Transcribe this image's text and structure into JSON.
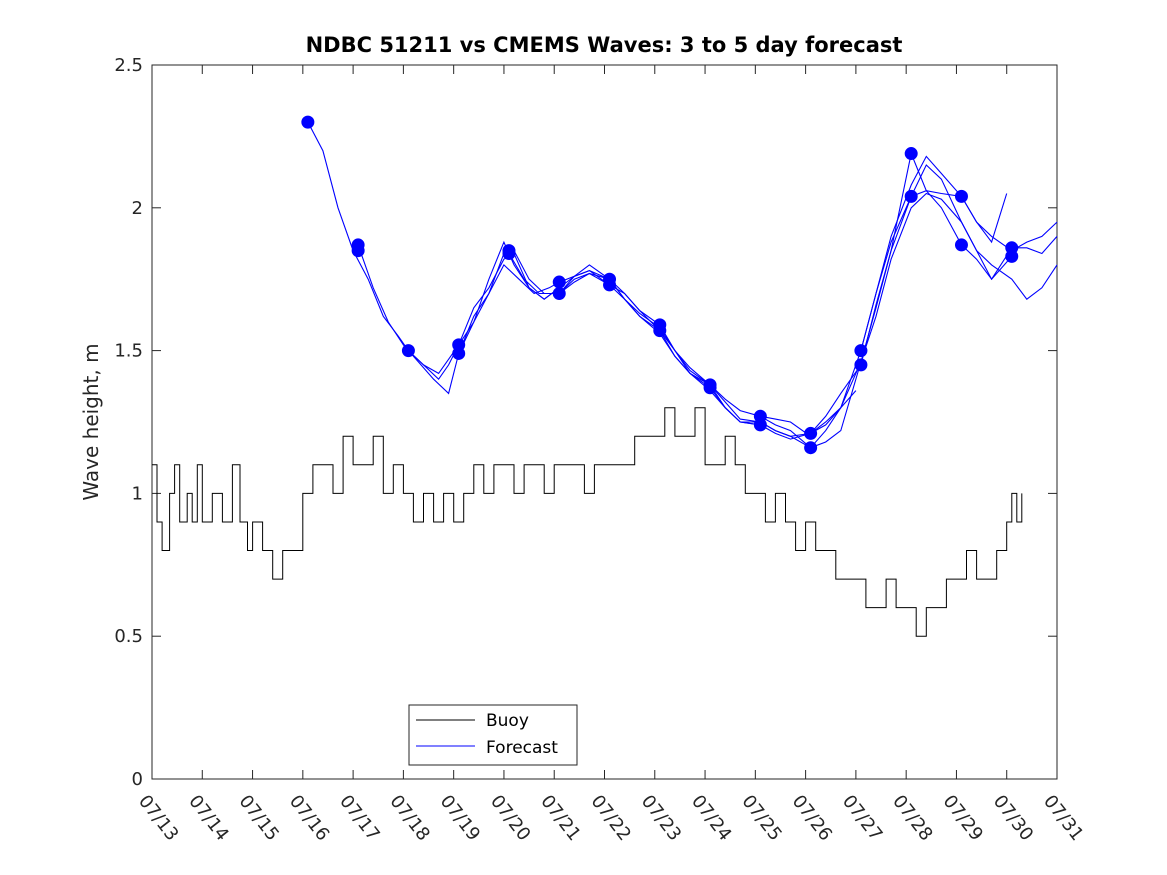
{
  "chart_data": {
    "type": "line",
    "title": "NDBC 51211 vs CMEMS Waves: 3 to 5 day forecast",
    "ylabel": "Wave height, m",
    "xlabel": "",
    "xlim": [
      13,
      31
    ],
    "ylim": [
      0,
      2.5
    ],
    "grid": false,
    "legend_placement": "bottom-left",
    "x_ticks": [
      "07/13",
      "07/14",
      "07/15",
      "07/16",
      "07/17",
      "07/18",
      "07/19",
      "07/20",
      "07/21",
      "07/22",
      "07/23",
      "07/24",
      "07/25",
      "07/26",
      "07/27",
      "07/28",
      "07/29",
      "07/30",
      "07/31"
    ],
    "y_ticks": [
      "0",
      "0.5",
      "1",
      "1.5",
      "2",
      "2.5"
    ],
    "y_tick_values": [
      0,
      0.5,
      1,
      1.5,
      2,
      2.5
    ],
    "colors": {
      "buoy": "#000000",
      "forecast": "#0000ff"
    },
    "series": [
      {
        "name": "Buoy",
        "style": "step",
        "x": [
          13.0,
          13.1,
          13.2,
          13.35,
          13.45,
          13.55,
          13.7,
          13.8,
          13.9,
          14.0,
          14.2,
          14.4,
          14.6,
          14.75,
          14.9,
          15.0,
          15.2,
          15.4,
          15.6,
          15.8,
          16.0,
          16.2,
          16.4,
          16.6,
          16.8,
          17.0,
          17.2,
          17.4,
          17.6,
          17.8,
          18.0,
          18.2,
          18.4,
          18.6,
          18.8,
          19.0,
          19.2,
          19.4,
          19.6,
          19.8,
          20.0,
          20.2,
          20.4,
          20.6,
          20.8,
          21.0,
          21.2,
          21.4,
          21.6,
          21.8,
          22.0,
          22.2,
          22.4,
          22.6,
          22.8,
          23.0,
          23.2,
          23.4,
          23.6,
          23.8,
          24.0,
          24.2,
          24.4,
          24.6,
          24.8,
          25.0,
          25.2,
          25.4,
          25.6,
          25.8,
          26.0,
          26.2,
          26.4,
          26.6,
          26.8,
          27.0,
          27.2,
          27.4,
          27.6,
          27.8,
          28.0,
          28.2,
          28.4,
          28.6,
          28.8,
          29.0,
          29.2,
          29.4,
          29.6,
          29.8,
          30.0,
          30.1,
          30.2,
          30.3
        ],
        "values": [
          1.1,
          0.9,
          0.8,
          1.0,
          1.1,
          0.9,
          1.0,
          0.9,
          1.1,
          0.9,
          1.0,
          0.9,
          1.1,
          0.9,
          0.8,
          0.9,
          0.8,
          0.7,
          0.8,
          0.8,
          1.0,
          1.1,
          1.1,
          1.0,
          1.2,
          1.1,
          1.1,
          1.2,
          1.0,
          1.1,
          1.0,
          0.9,
          1.0,
          0.9,
          1.0,
          0.9,
          1.0,
          1.1,
          1.0,
          1.1,
          1.1,
          1.0,
          1.1,
          1.1,
          1.0,
          1.1,
          1.1,
          1.1,
          1.0,
          1.1,
          1.1,
          1.1,
          1.1,
          1.2,
          1.2,
          1.2,
          1.3,
          1.2,
          1.2,
          1.3,
          1.1,
          1.1,
          1.2,
          1.1,
          1.0,
          1.0,
          0.9,
          1.0,
          0.9,
          0.8,
          0.9,
          0.8,
          0.8,
          0.7,
          0.7,
          0.7,
          0.6,
          0.6,
          0.7,
          0.6,
          0.6,
          0.5,
          0.6,
          0.6,
          0.7,
          0.7,
          0.8,
          0.7,
          0.7,
          0.8,
          0.9,
          1.0,
          0.9,
          1.0
        ]
      },
      {
        "name": "Forecast",
        "segments": [
          {
            "x": [
              16.1,
              16.4,
              16.7,
              17.0,
              17.3,
              17.6,
              17.9,
              18.1,
              18.4,
              18.7,
              18.9,
              19.1,
              19.4,
              19.7,
              20.0,
              20.2,
              20.5,
              20.8,
              21.1
            ],
            "values": [
              2.3,
              2.2,
              2.0,
              1.85,
              1.75,
              1.62,
              1.55,
              1.5,
              1.45,
              1.4,
              1.45,
              1.52,
              1.65,
              1.72,
              1.82,
              1.84,
              1.72,
              1.68,
              1.72
            ]
          },
          {
            "x": [
              17.1,
              17.4,
              17.7,
              18.0,
              18.3,
              18.6,
              18.9,
              19.1,
              19.4,
              19.7,
              20.0,
              20.2,
              20.5,
              20.8,
              21.1,
              21.4,
              21.7,
              22.1
            ],
            "values": [
              1.87,
              1.72,
              1.6,
              1.52,
              1.46,
              1.4,
              1.35,
              1.49,
              1.62,
              1.7,
              1.84,
              1.85,
              1.75,
              1.7,
              1.7,
              1.75,
              1.77,
              1.75
            ]
          },
          {
            "x": [
              18.1,
              18.4,
              18.7,
              19.1,
              19.4,
              19.7,
              20.0,
              20.2,
              20.5,
              20.8,
              21.1,
              21.4,
              21.7,
              22.1,
              22.4,
              22.7,
              23.1
            ],
            "values": [
              1.5,
              1.45,
              1.42,
              1.52,
              1.6,
              1.75,
              1.88,
              1.8,
              1.72,
              1.68,
              1.72,
              1.76,
              1.78,
              1.73,
              1.7,
              1.64,
              1.57
            ]
          },
          {
            "x": [
              19.1,
              19.4,
              19.7,
              20.0,
              20.3,
              20.6,
              20.9,
              21.1,
              21.4,
              21.7,
              22.1,
              22.4,
              22.7,
              23.1,
              23.4,
              23.7,
              24.1
            ],
            "values": [
              1.49,
              1.6,
              1.7,
              1.8,
              1.75,
              1.7,
              1.72,
              1.74,
              1.76,
              1.8,
              1.75,
              1.68,
              1.62,
              1.57,
              1.48,
              1.42,
              1.37
            ]
          },
          {
            "x": [
              20.1,
              20.4,
              20.7,
              21.1,
              21.4,
              21.7,
              22.1,
              22.4,
              22.7,
              23.1,
              23.4,
              23.7,
              24.1,
              24.4,
              24.7,
              25.1
            ],
            "values": [
              1.84,
              1.75,
              1.7,
              1.7,
              1.74,
              1.77,
              1.73,
              1.68,
              1.63,
              1.58,
              1.5,
              1.43,
              1.38,
              1.3,
              1.25,
              1.24
            ]
          },
          {
            "x": [
              21.1,
              21.4,
              21.7,
              22.1,
              22.4,
              22.7,
              23.1,
              23.4,
              23.7,
              24.1,
              24.4,
              24.7,
              25.1,
              25.4,
              25.7,
              26.1
            ],
            "values": [
              1.7,
              1.76,
              1.78,
              1.75,
              1.7,
              1.64,
              1.59,
              1.5,
              1.44,
              1.38,
              1.33,
              1.29,
              1.27,
              1.26,
              1.25,
              1.2
            ]
          },
          {
            "x": [
              22.1,
              22.4,
              22.7,
              23.1,
              23.4,
              23.7,
              24.1,
              24.4,
              24.7,
              25.1,
              25.4,
              25.7,
              26.1,
              26.4,
              26.7,
              27.0
            ],
            "values": [
              1.75,
              1.68,
              1.62,
              1.56,
              1.48,
              1.42,
              1.36,
              1.3,
              1.25,
              1.25,
              1.22,
              1.2,
              1.21,
              1.24,
              1.3,
              1.36
            ]
          },
          {
            "x": [
              23.1,
              23.4,
              23.7,
              24.1,
              24.4,
              24.7,
              25.1,
              25.4,
              25.7,
              26.1,
              26.4,
              26.7,
              27.1,
              27.4,
              27.7,
              28.1
            ],
            "values": [
              1.57,
              1.5,
              1.42,
              1.38,
              1.32,
              1.26,
              1.25,
              1.22,
              1.2,
              1.16,
              1.22,
              1.3,
              1.5,
              1.7,
              1.88,
              2.04
            ]
          },
          {
            "x": [
              24.1,
              24.4,
              24.7,
              25.1,
              25.4,
              25.7,
              26.1,
              26.4,
              26.7,
              27.1,
              27.4,
              27.7,
              28.1,
              28.4,
              28.7,
              29.1
            ],
            "values": [
              1.37,
              1.3,
              1.25,
              1.24,
              1.21,
              1.19,
              1.21,
              1.27,
              1.35,
              1.45,
              1.66,
              1.85,
              2.04,
              2.06,
              2.05,
              2.04
            ]
          },
          {
            "x": [
              25.1,
              25.4,
              25.7,
              26.1,
              26.4,
              26.7,
              27.1,
              27.4,
              27.7,
              28.1,
              28.4,
              28.7,
              29.1,
              29.4,
              29.7,
              30.1
            ],
            "values": [
              1.27,
              1.24,
              1.22,
              1.16,
              1.18,
              1.22,
              1.46,
              1.62,
              1.82,
              2.0,
              2.05,
              2.03,
              1.95,
              1.85,
              1.75,
              1.83
            ]
          },
          {
            "x": [
              26.1,
              26.4,
              26.7,
              27.1,
              27.4,
              27.7,
              28.1,
              28.4,
              28.7,
              29.1,
              29.4,
              29.7,
              30.1,
              30.4,
              30.7,
              31.0
            ],
            "values": [
              1.21,
              1.25,
              1.3,
              1.46,
              1.65,
              1.85,
              2.19,
              2.06,
              2.0,
              1.87,
              1.82,
              1.75,
              1.86,
              1.86,
              1.84,
              1.9
            ]
          },
          {
            "x": [
              27.1,
              27.4,
              27.7,
              28.1,
              28.4,
              28.7,
              29.1,
              29.4,
              29.7,
              30.1,
              30.4,
              30.7,
              31.0
            ],
            "values": [
              1.5,
              1.7,
              1.9,
              2.08,
              2.18,
              2.12,
              2.04,
              1.95,
              1.9,
              1.85,
              1.88,
              1.9,
              1.95
            ]
          },
          {
            "x": [
              28.1,
              28.4,
              28.7,
              29.1,
              29.4,
              29.7,
              30.1,
              30.4,
              30.7,
              31.0
            ],
            "values": [
              2.04,
              2.15,
              2.1,
              1.95,
              1.85,
              1.8,
              1.75,
              1.68,
              1.72,
              1.8
            ]
          },
          {
            "x": [
              29.1,
              29.4,
              29.7,
              30.0
            ],
            "values": [
              2.04,
              1.95,
              1.88,
              2.05
            ]
          }
        ],
        "markers": {
          "x": [
            16.1,
            17.1,
            17.1,
            18.1,
            19.1,
            19.1,
            20.1,
            20.1,
            21.1,
            21.1,
            22.1,
            22.1,
            23.1,
            23.1,
            24.1,
            24.1,
            25.1,
            25.1,
            26.1,
            26.1,
            27.1,
            27.1,
            28.1,
            28.1,
            29.1,
            29.1,
            30.1,
            30.1
          ],
          "values": [
            2.3,
            1.87,
            1.85,
            1.5,
            1.52,
            1.49,
            1.85,
            1.84,
            1.74,
            1.7,
            1.75,
            1.73,
            1.59,
            1.57,
            1.38,
            1.37,
            1.27,
            1.24,
            1.21,
            1.16,
            1.5,
            1.45,
            2.19,
            2.04,
            2.04,
            1.87,
            1.86,
            1.83
          ]
        }
      }
    ]
  }
}
